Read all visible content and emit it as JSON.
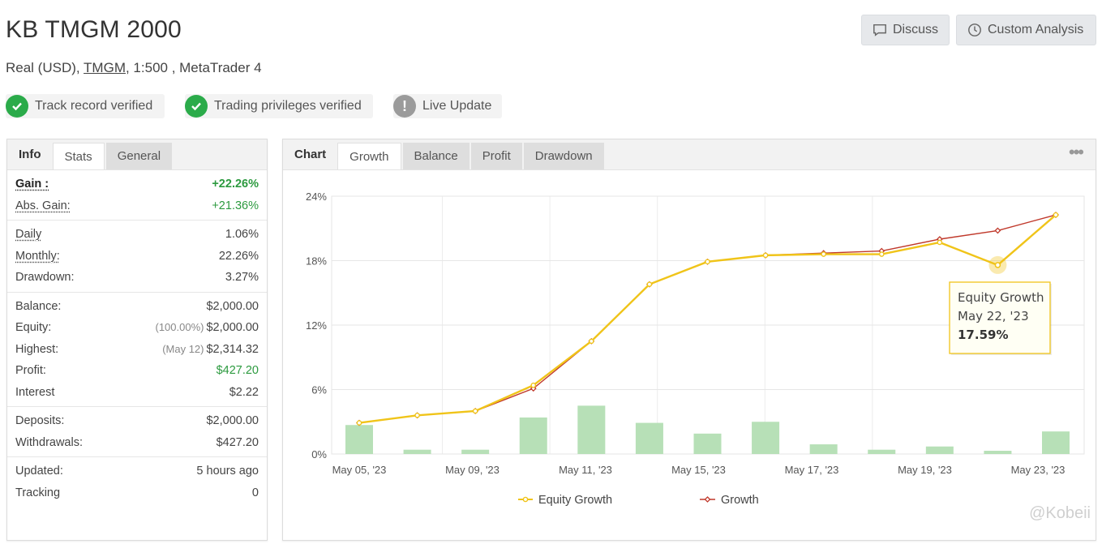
{
  "header": {
    "title": "KB TMGM 2000",
    "account_type": "Real (USD), ",
    "broker": "TMGM",
    "leverage_platform": ", 1:500 , MetaTrader 4"
  },
  "actions": {
    "discuss": "Discuss",
    "custom_analysis": "Custom Analysis"
  },
  "badges": {
    "track_record": "Track record verified",
    "trading_privileges": "Trading privileges verified",
    "live_update": "Live Update"
  },
  "left_tabs": {
    "info": "Info",
    "stats": "Stats",
    "general": "General"
  },
  "stats": {
    "gain_label": "Gain :",
    "gain_value": "+22.26%",
    "abs_gain_label": "Abs. Gain:",
    "abs_gain_value": "+21.36%",
    "daily_label": "Daily",
    "daily_value": "1.06%",
    "monthly_label": "Monthly:",
    "monthly_value": "22.26%",
    "drawdown_label": "Drawdown:",
    "drawdown_value": "3.27%",
    "balance_label": "Balance:",
    "balance_value": "$2,000.00",
    "equity_label": "Equity:",
    "equity_pre": "(100.00%)",
    "equity_value": "$2,000.00",
    "highest_label": "Highest:",
    "highest_pre": "(May 12)",
    "highest_value": "$2,314.32",
    "profit_label": "Profit:",
    "profit_value": "$427.20",
    "interest_label": "Interest",
    "interest_value": "$2.22",
    "deposits_label": "Deposits:",
    "deposits_value": "$2,000.00",
    "withdrawals_label": "Withdrawals:",
    "withdrawals_value": "$427.20",
    "updated_label": "Updated:",
    "updated_value": "5 hours ago",
    "tracking_label": "Tracking",
    "tracking_value": "0"
  },
  "chart_tabs": {
    "chart": "Chart",
    "growth": "Growth",
    "balance": "Balance",
    "profit": "Profit",
    "drawdown": "Drawdown"
  },
  "colors": {
    "equity": "#f0c419",
    "growth": "#c0392b",
    "bars": "#b7e0b7",
    "positive": "#2c9a3f"
  },
  "tooltip": {
    "series": "Equity Growth",
    "date": "May 22, '23",
    "value": "17.59%"
  },
  "watermark": "@Kobeii",
  "chart_data": {
    "type": "line",
    "ylim": [
      0,
      24
    ],
    "yticks": [
      "0%",
      "6%",
      "12%",
      "18%",
      "24%"
    ],
    "ytick_values": [
      0,
      6,
      12,
      18,
      24
    ],
    "x_labels": [
      "May 05, '23",
      "May 09, '23",
      "May 11, '23",
      "May 15, '23",
      "May 17, '23",
      "May 19, '23",
      "May 23, '23"
    ],
    "points": [
      "May 05",
      "May 08",
      "May 09",
      "May 10",
      "May 11",
      "May 12",
      "May 15",
      "May 16",
      "May 17",
      "May 18",
      "May 19",
      "May 22",
      "May 23"
    ],
    "series": [
      {
        "name": "Equity Growth",
        "values": [
          2.9,
          3.6,
          4.0,
          6.4,
          10.5,
          15.8,
          17.9,
          18.5,
          18.6,
          18.6,
          19.7,
          17.59,
          22.26
        ]
      },
      {
        "name": "Growth",
        "values": [
          2.9,
          3.6,
          4.0,
          6.1,
          10.5,
          15.8,
          17.9,
          18.5,
          18.7,
          18.9,
          20.0,
          20.8,
          22.26
        ]
      }
    ],
    "bars": {
      "name": "Daily",
      "values": [
        2.7,
        0.4,
        0.4,
        3.4,
        4.5,
        2.9,
        1.9,
        3.0,
        0.9,
        0.4,
        0.7,
        0.3,
        2.1
      ]
    },
    "legend": [
      "Equity Growth",
      "Growth"
    ],
    "legend_position": "bottom",
    "grid": true
  }
}
